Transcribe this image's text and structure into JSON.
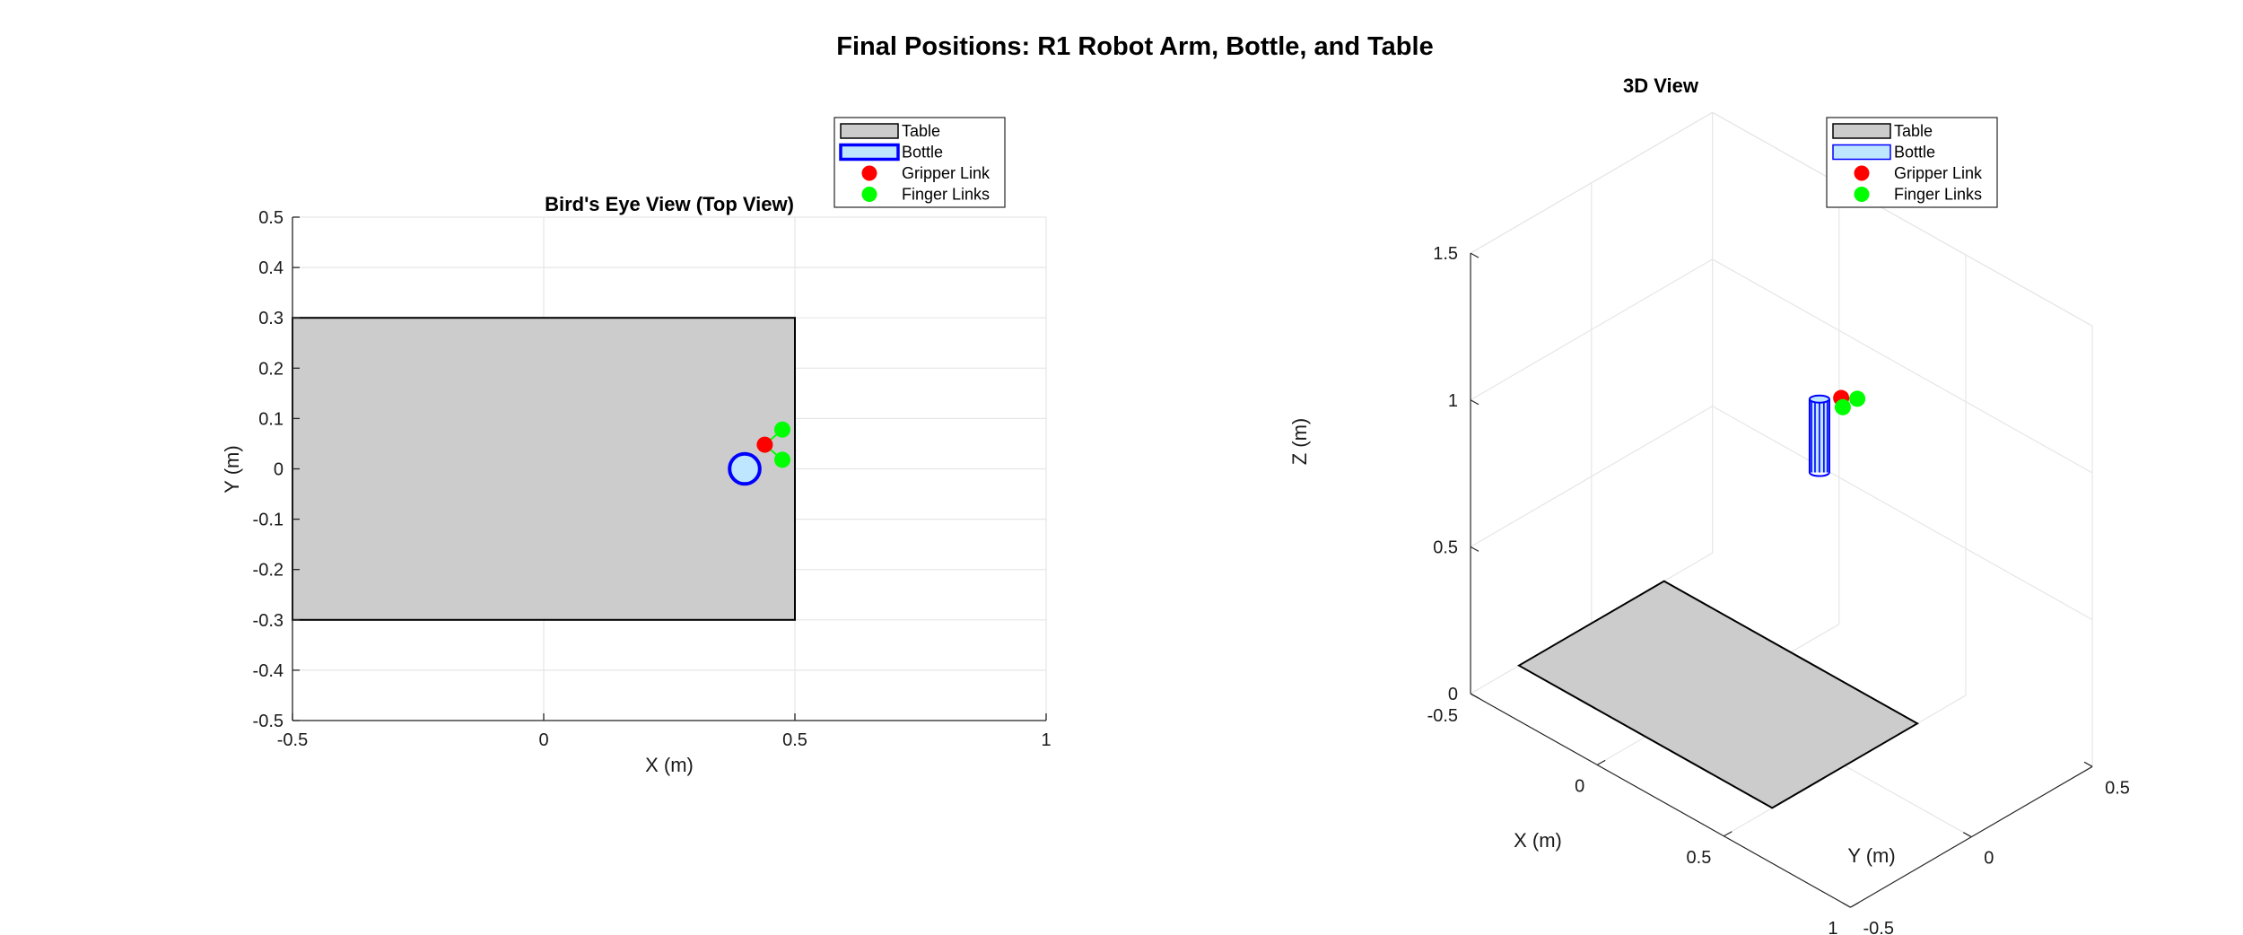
{
  "figure_title": "Final Positions: R1 Robot Arm, Bottle, and Table",
  "colors": {
    "table_fill": "#cccccc",
    "table_edge": "#000000",
    "bottle_fill": "#bfe6ff",
    "bottle_edge": "#0000ff",
    "gripper": "#ff0000",
    "finger": "#00ff00",
    "grid": "#e6e6e6",
    "axis": "#262626"
  },
  "chart_data": [
    {
      "type": "scatter",
      "title": "Bird's Eye View (Top View)",
      "xlabel": "X (m)",
      "ylabel": "Y (m)",
      "xlim": [
        -0.5,
        1
      ],
      "ylim": [
        -0.5,
        0.5
      ],
      "xticks": [
        -0.5,
        0,
        0.5,
        1
      ],
      "xtick_labels": [
        "-0.5",
        "0",
        "0.5",
        "1"
      ],
      "yticks": [
        -0.5,
        -0.4,
        -0.3,
        -0.2,
        -0.1,
        0,
        0.1,
        0.2,
        0.3,
        0.4,
        0.5
      ],
      "ytick_labels": [
        "-0.5",
        "-0.4",
        "-0.3",
        "-0.2",
        "-0.1",
        "0",
        "0.1",
        "0.2",
        "0.3",
        "0.4",
        "0.5"
      ],
      "grid": true,
      "legend_position": "top-right (outside)",
      "legend": [
        "Table",
        "Bottle",
        "Gripper Link",
        "Finger Links"
      ],
      "table": {
        "x": [
          -0.5,
          0.5
        ],
        "y": [
          -0.3,
          0.3
        ]
      },
      "bottle": {
        "x": 0.4,
        "y": 0.0,
        "radius": 0.03
      },
      "gripper_link": {
        "x": 0.44,
        "y": 0.048
      },
      "finger_links": [
        {
          "x": 0.475,
          "y": 0.078
        },
        {
          "x": 0.475,
          "y": 0.018
        }
      ]
    },
    {
      "type": "scatter3d",
      "title": "3D View",
      "xlabel": "X (m)",
      "ylabel": "Y (m)",
      "zlabel": "Z (m)",
      "xlim": [
        -0.5,
        1
      ],
      "ylim": [
        -0.5,
        0.5
      ],
      "zlim": [
        0,
        1.5
      ],
      "xticks": [
        0,
        0.5,
        1
      ],
      "xtick_labels": [
        "0",
        "0.5",
        "1"
      ],
      "yticks": [
        -0.5,
        0,
        0.5
      ],
      "ytick_labels": [
        "-0.5",
        "0",
        "0.5"
      ],
      "zticks": [
        0,
        0.5,
        1,
        1.5
      ],
      "ztick_labels": [
        "0",
        "0.5",
        "1",
        "1.5"
      ],
      "x_corner_label": "-0.5",
      "grid": true,
      "legend_position": "top-right",
      "legend": [
        "Table",
        "Bottle",
        "Gripper Link",
        "Finger Links"
      ],
      "table": {
        "x": [
          -0.5,
          0.5
        ],
        "y": [
          -0.3,
          0.3
        ],
        "z": 0
      },
      "bottle": {
        "x": 0.4,
        "y": 0.0,
        "radius": 0.03,
        "z_range": [
          0.95,
          1.2
        ]
      },
      "gripper_link": {
        "x": 0.44,
        "y": 0.048,
        "z": 1.2
      },
      "finger_links": [
        {
          "x": 0.475,
          "y": 0.078,
          "z": 1.2
        },
        {
          "x": 0.475,
          "y": 0.018,
          "z": 1.2
        }
      ]
    }
  ]
}
